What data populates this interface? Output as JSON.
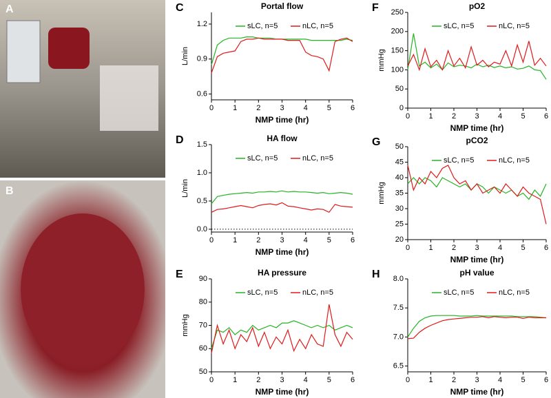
{
  "photos": [
    "A",
    "B"
  ],
  "chart_data": [
    {
      "type": "line",
      "panel": "C",
      "title": "Portal flow",
      "xlabel": "NMP time (hr)",
      "ylabel": "L/min",
      "x": [
        0,
        0.25,
        0.5,
        0.75,
        1,
        1.25,
        1.5,
        1.75,
        2,
        2.25,
        2.5,
        2.75,
        3,
        3.25,
        3.5,
        3.75,
        4,
        4.25,
        4.5,
        4.75,
        5,
        5.25,
        5.5,
        5.75,
        6
      ],
      "xlim": [
        0,
        6
      ],
      "xticks": [
        0,
        1,
        2,
        3,
        4,
        5,
        6
      ],
      "ylim": [
        0.55,
        1.3
      ],
      "yticks": [
        0.6,
        0.9,
        1.2
      ],
      "series": [
        {
          "name": "sLC, n=5",
          "color": "#22b422",
          "values": [
            0.85,
            1.02,
            1.06,
            1.08,
            1.08,
            1.08,
            1.09,
            1.09,
            1.08,
            1.08,
            1.08,
            1.07,
            1.07,
            1.07,
            1.07,
            1.07,
            1.07,
            1.06,
            1.06,
            1.06,
            1.06,
            1.06,
            1.06,
            1.07,
            1.06
          ]
        },
        {
          "name": "nLC, n=5",
          "color": "#e01818",
          "values": [
            0.78,
            0.92,
            0.95,
            0.96,
            0.97,
            1.05,
            1.07,
            1.07,
            1.08,
            1.07,
            1.07,
            1.07,
            1.07,
            1.06,
            1.06,
            1.06,
            0.96,
            0.93,
            0.92,
            0.9,
            0.8,
            1.05,
            1.07,
            1.08,
            1.05
          ]
        }
      ]
    },
    {
      "type": "line",
      "panel": "D",
      "title": "HA flow",
      "xlabel": "NMP time (hr)",
      "ylabel": "L/min",
      "x": [
        0,
        0.25,
        0.5,
        0.75,
        1,
        1.25,
        1.5,
        1.75,
        2,
        2.25,
        2.5,
        2.75,
        3,
        3.25,
        3.5,
        3.75,
        4,
        4.25,
        4.5,
        4.75,
        5,
        5.25,
        5.5,
        5.75,
        6
      ],
      "xlim": [
        0,
        6
      ],
      "xticks": [
        0,
        1,
        2,
        3,
        4,
        5,
        6
      ],
      "ylim": [
        -0.05,
        1.5
      ],
      "yticks": [
        {
          "value": 0,
          "label": "0.0"
        },
        0.5,
        {
          "value": 1,
          "label": "1.0"
        },
        1.5
      ],
      "refline": 0,
      "series": [
        {
          "name": "sLC, n=5",
          "color": "#22b422",
          "values": [
            0.45,
            0.58,
            0.6,
            0.62,
            0.63,
            0.64,
            0.65,
            0.64,
            0.66,
            0.66,
            0.67,
            0.66,
            0.68,
            0.66,
            0.67,
            0.66,
            0.66,
            0.65,
            0.64,
            0.65,
            0.63,
            0.64,
            0.65,
            0.64,
            0.62
          ]
        },
        {
          "name": "nLC, n=5",
          "color": "#e01818",
          "values": [
            0.3,
            0.35,
            0.36,
            0.38,
            0.4,
            0.42,
            0.4,
            0.38,
            0.42,
            0.44,
            0.45,
            0.43,
            0.47,
            0.41,
            0.4,
            0.38,
            0.36,
            0.34,
            0.36,
            0.35,
            0.3,
            0.44,
            0.41,
            0.4,
            0.39
          ]
        }
      ]
    },
    {
      "type": "line",
      "panel": "E",
      "title": "HA pressure",
      "xlabel": "NMP time (hr)",
      "ylabel": "mmHg",
      "x": [
        0,
        0.25,
        0.5,
        0.75,
        1,
        1.25,
        1.5,
        1.75,
        2,
        2.25,
        2.5,
        2.75,
        3,
        3.25,
        3.5,
        3.75,
        4,
        4.25,
        4.5,
        4.75,
        5,
        5.25,
        5.5,
        5.75,
        6
      ],
      "xlim": [
        0,
        6
      ],
      "xticks": [
        0,
        1,
        2,
        3,
        4,
        5,
        6
      ],
      "ylim": [
        50,
        90
      ],
      "yticks": [
        50,
        60,
        70,
        80,
        90
      ],
      "series": [
        {
          "name": "sLC, n=5",
          "color": "#22b422",
          "values": [
            60,
            68,
            67,
            69,
            66,
            68,
            67,
            70,
            68,
            69,
            70,
            69,
            71,
            71,
            72,
            71,
            70,
            69,
            70,
            69,
            70,
            68,
            69,
            70,
            69
          ]
        },
        {
          "name": "nLC, n=5",
          "color": "#e01818",
          "values": [
            58,
            70,
            62,
            68,
            60,
            66,
            63,
            69,
            61,
            67,
            60,
            65,
            62,
            68,
            59,
            64,
            60,
            66,
            62,
            61,
            79,
            66,
            61,
            67,
            64
          ]
        }
      ]
    },
    {
      "type": "line",
      "panel": "F",
      "title": "pO2",
      "xlabel": "NMP time (hr)",
      "ylabel": "mmHg",
      "x": [
        0,
        0.25,
        0.5,
        0.75,
        1,
        1.25,
        1.5,
        1.75,
        2,
        2.25,
        2.5,
        2.75,
        3,
        3.25,
        3.5,
        3.75,
        4,
        4.25,
        4.5,
        4.75,
        5,
        5.25,
        5.5,
        5.75,
        6
      ],
      "xlim": [
        0,
        6
      ],
      "xticks": [
        0,
        1,
        2,
        3,
        4,
        5,
        6
      ],
      "ylim": [
        0,
        250
      ],
      "yticks": [
        0,
        50,
        100,
        150,
        200,
        250
      ],
      "series": [
        {
          "name": "sLC, n=5",
          "color": "#22b422",
          "values": [
            100,
            195,
            110,
            120,
            105,
            115,
            100,
            118,
            108,
            112,
            110,
            105,
            115,
            108,
            112,
            106,
            110,
            105,
            108,
            102,
            104,
            110,
            100,
            98,
            75
          ]
        },
        {
          "name": "nLC, n=5",
          "color": "#e01818",
          "values": [
            110,
            140,
            100,
            155,
            108,
            125,
            100,
            150,
            110,
            130,
            105,
            160,
            112,
            125,
            108,
            120,
            115,
            150,
            110,
            165,
            120,
            175,
            112,
            130,
            110
          ]
        }
      ]
    },
    {
      "type": "line",
      "panel": "G",
      "title": "pCO2",
      "xlabel": "NMP time (hr)",
      "ylabel": "mmHg",
      "x": [
        0,
        0.25,
        0.5,
        0.75,
        1,
        1.25,
        1.5,
        1.75,
        2,
        2.25,
        2.5,
        2.75,
        3,
        3.25,
        3.5,
        3.75,
        4,
        4.25,
        4.5,
        4.75,
        5,
        5.25,
        5.5,
        5.75,
        6
      ],
      "xlim": [
        0,
        6
      ],
      "xticks": [
        0,
        1,
        2,
        3,
        4,
        5,
        6
      ],
      "ylim": [
        20,
        50
      ],
      "yticks": [
        20,
        25,
        30,
        35,
        40,
        45,
        50
      ],
      "series": [
        {
          "name": "sLC, n=5",
          "color": "#22b422",
          "values": [
            38,
            40,
            38,
            40,
            39,
            37,
            40,
            39,
            38,
            37,
            38,
            36,
            38,
            37,
            35,
            37,
            36,
            35,
            36,
            34,
            35,
            33,
            36,
            34,
            38
          ]
        },
        {
          "name": "nLC, n=5",
          "color": "#e01818",
          "values": [
            44,
            36,
            40,
            38,
            42,
            40,
            43,
            44,
            40,
            38,
            39,
            36,
            38,
            35,
            36,
            37,
            35,
            38,
            36,
            34,
            37,
            35,
            34,
            33,
            25
          ]
        }
      ]
    },
    {
      "type": "line",
      "panel": "H",
      "title": "pH value",
      "xlabel": "NMP time (hr)",
      "ylabel": "",
      "x": [
        0,
        0.25,
        0.5,
        0.75,
        1,
        1.25,
        1.5,
        1.75,
        2,
        2.25,
        2.5,
        2.75,
        3,
        3.25,
        3.5,
        3.75,
        4,
        4.25,
        4.5,
        4.75,
        5,
        5.25,
        5.5,
        5.75,
        6
      ],
      "xlim": [
        0,
        6
      ],
      "xticks": [
        0,
        1,
        2,
        3,
        4,
        5,
        6
      ],
      "ylim": [
        6.4,
        8.0
      ],
      "yticks": [
        6.5,
        {
          "value": 7,
          "label": "7.0"
        },
        7.5,
        {
          "value": 8,
          "label": "8.0"
        }
      ],
      "series": [
        {
          "name": "sLC, n=5",
          "color": "#22b422",
          "values": [
            7.0,
            7.15,
            7.27,
            7.33,
            7.36,
            7.37,
            7.37,
            7.37,
            7.37,
            7.36,
            7.36,
            7.36,
            7.37,
            7.36,
            7.36,
            7.36,
            7.36,
            7.36,
            7.36,
            7.35,
            7.35,
            7.35,
            7.35,
            7.34,
            7.33
          ]
        },
        {
          "name": "nLC, n=5",
          "color": "#e01818",
          "values": [
            6.97,
            6.98,
            7.08,
            7.15,
            7.2,
            7.24,
            7.28,
            7.3,
            7.31,
            7.32,
            7.33,
            7.34,
            7.34,
            7.35,
            7.33,
            7.35,
            7.34,
            7.33,
            7.34,
            7.34,
            7.32,
            7.34,
            7.33,
            7.33,
            7.33
          ]
        }
      ]
    }
  ]
}
